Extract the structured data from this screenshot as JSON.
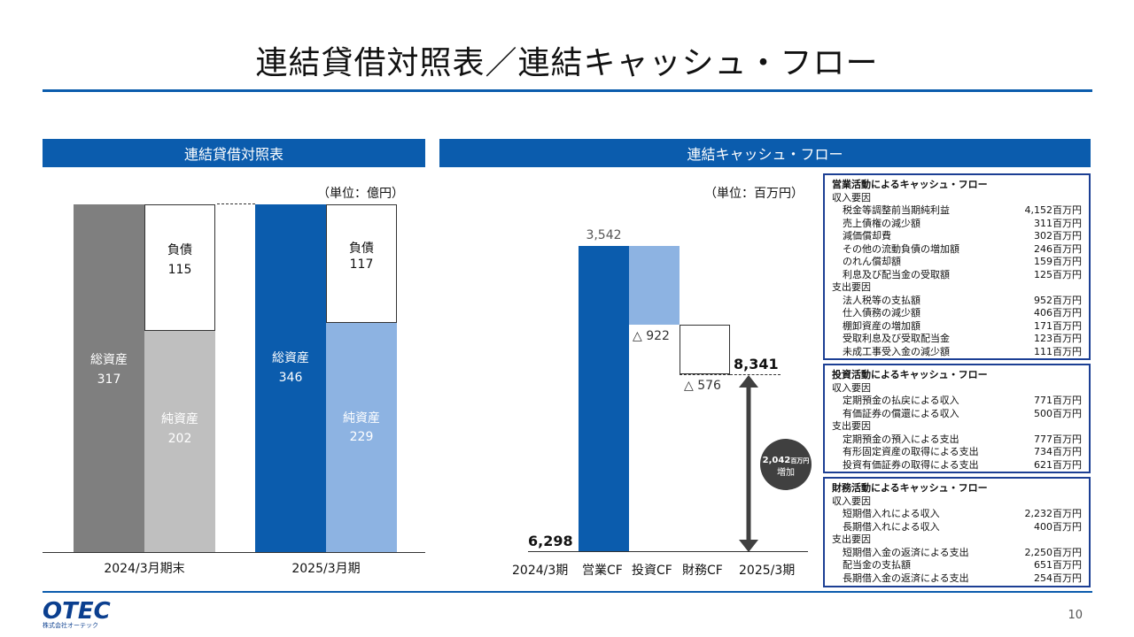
{
  "title": "連結貸借対照表／連結キャッシュ・フロー",
  "bs": {
    "header": "連結貸借対照表",
    "unit": "（単位：億円）",
    "periods": [
      {
        "label": "2024/3月期末",
        "total_label": "総資産",
        "total_value": "317",
        "liab_label": "負債",
        "liab_value": "115",
        "equity_label": "純資産",
        "equity_value": "202"
      },
      {
        "label": "2025/3月期",
        "total_label": "総資産",
        "total_value": "346",
        "liab_label": "負債",
        "liab_value": "117",
        "equity_label": "純資産",
        "equity_value": "229"
      }
    ]
  },
  "cf": {
    "header": "連結キャッシュ・フロー",
    "unit": "（単位：百万円）",
    "start_value": "6,298",
    "operating_value": "3,542",
    "investing_value": "△ 922",
    "financing_value": "△ 576",
    "end_value": "8,341",
    "increase_value": "2,042",
    "increase_unit": "百万円",
    "increase_label": "増加",
    "x_labels": [
      "2024/3期",
      "営業CF",
      "投資CF",
      "財務CF",
      "2025/3期"
    ]
  },
  "chart_data": {
    "type": "bar",
    "title": "",
    "categories": [
      "2024/3期",
      "営業CF",
      "投資CF",
      "財務CF",
      "2025/3期"
    ],
    "values": [
      6298,
      3542,
      -922,
      -576,
      8341
    ],
    "ylabel": "",
    "unit": "百万円"
  },
  "boxes": {
    "operating": {
      "title": "営業活動によるキャッシュ・フロー",
      "in_label": "収入要因",
      "in_items": [
        {
          "name": "税金等調整前当期純利益",
          "value": "4,152百万円"
        },
        {
          "name": "売上債権の減少額",
          "value": "311百万円"
        },
        {
          "name": "減価償却費",
          "value": "302百万円"
        },
        {
          "name": "その他の流動負債の増加額",
          "value": "246百万円"
        },
        {
          "name": "のれん償却額",
          "value": "159百万円"
        },
        {
          "name": "利息及び配当金の受取額",
          "value": "125百万円"
        }
      ],
      "out_label": "支出要因",
      "out_items": [
        {
          "name": "法人税等の支払額",
          "value": "952百万円"
        },
        {
          "name": "仕入債務の減少額",
          "value": "406百万円"
        },
        {
          "name": "棚卸資産の増加額",
          "value": "171百万円"
        },
        {
          "name": "受取利息及び受取配当金",
          "value": "123百万円"
        },
        {
          "name": "未成工事受入金の減少額",
          "value": "111百万円"
        }
      ]
    },
    "investing": {
      "title": "投資活動によるキャッシュ・フロー",
      "in_label": "収入要因",
      "in_items": [
        {
          "name": "定期預金の払戻による収入",
          "value": "771百万円"
        },
        {
          "name": "有価証券の償還による収入",
          "value": "500百万円"
        }
      ],
      "out_label": "支出要因",
      "out_items": [
        {
          "name": "定期預金の預入による支出",
          "value": "777百万円"
        },
        {
          "name": "有形固定資産の取得による支出",
          "value": "734百万円"
        },
        {
          "name": "投資有価証券の取得による支出",
          "value": "621百万円"
        }
      ]
    },
    "financing": {
      "title": "財務活動によるキャッシュ・フロー",
      "in_label": "収入要因",
      "in_items": [
        {
          "name": "短期借入れによる収入",
          "value": "2,232百万円"
        },
        {
          "name": "長期借入れによる収入",
          "value": "400百万円"
        }
      ],
      "out_label": "支出要因",
      "out_items": [
        {
          "name": "短期借入金の返済による支出",
          "value": "2,250百万円"
        },
        {
          "name": "配当金の支払額",
          "value": "651百万円"
        },
        {
          "name": "長期借入金の返済による支出",
          "value": "254百万円"
        }
      ]
    }
  },
  "footer": {
    "logo": "OTEC",
    "logo_sub": "株式会社オーテック",
    "page": "10"
  },
  "colors": {
    "brand_blue": "#0b5cad",
    "dark_gray": "#7f7f7f",
    "light_gray": "#bfbfbf",
    "light_blue": "#8db3e2",
    "arrow": "#404040"
  }
}
